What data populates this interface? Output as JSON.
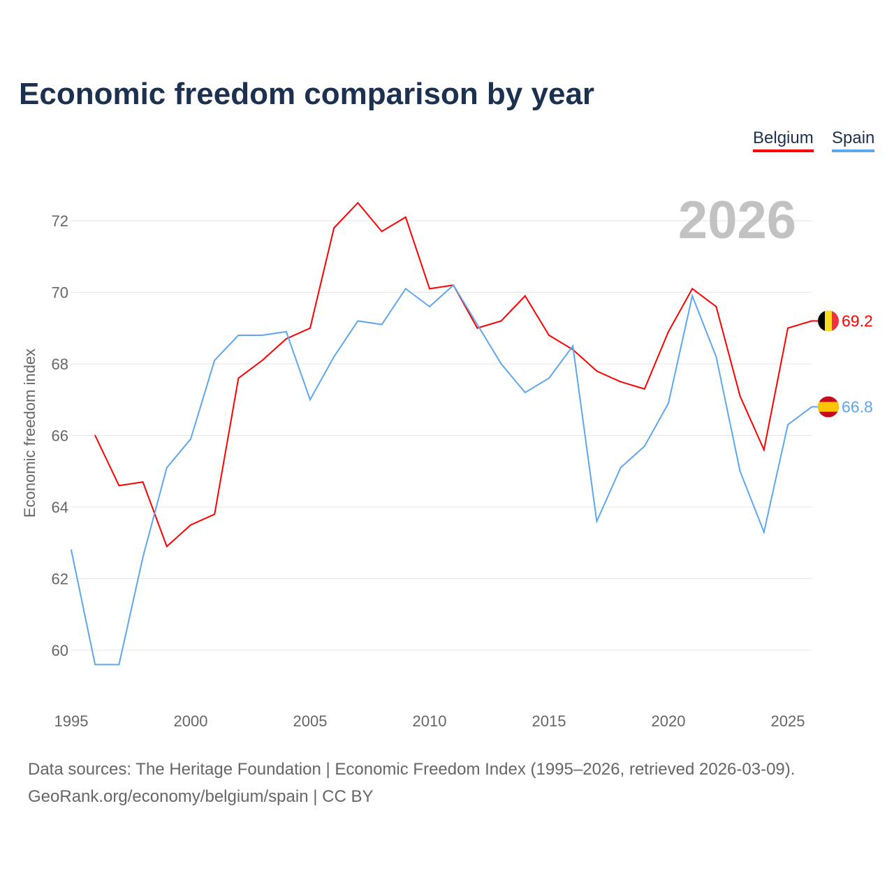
{
  "chart_data": {
    "type": "line",
    "title": "Economic freedom comparison by year",
    "ylabel": "Economic freedom index",
    "xlabel": "",
    "ylim": [
      58.8,
      73
    ],
    "xlim": [
      1995,
      2026
    ],
    "yticks": [
      60,
      62,
      64,
      66,
      68,
      70,
      72
    ],
    "xticks": [
      1995,
      2000,
      2005,
      2010,
      2015,
      2020,
      2025
    ],
    "grid": true,
    "legend_position": "top-right",
    "year_label": "2026",
    "series": [
      {
        "name": "Belgium",
        "color": "#ff0000",
        "end_label": "69.2",
        "x": [
          1996,
          1997,
          1998,
          1999,
          2000,
          2001,
          2002,
          2003,
          2004,
          2005,
          2006,
          2007,
          2008,
          2009,
          2010,
          2011,
          2012,
          2013,
          2014,
          2015,
          2016,
          2017,
          2018,
          2019,
          2020,
          2021,
          2022,
          2023,
          2024,
          2025,
          2026
        ],
        "values": [
          66.0,
          64.6,
          64.7,
          62.9,
          63.5,
          63.8,
          67.6,
          68.1,
          68.7,
          69.0,
          71.8,
          72.5,
          71.7,
          72.1,
          70.1,
          70.2,
          69.0,
          69.2,
          69.9,
          68.8,
          68.4,
          67.8,
          67.5,
          67.3,
          68.9,
          70.1,
          69.6,
          67.1,
          65.6,
          69.0,
          69.2
        ]
      },
      {
        "name": "Spain",
        "color": "#5ea6ed",
        "end_label": "66.8",
        "x": [
          1995,
          1996,
          1997,
          1998,
          1999,
          2000,
          2001,
          2002,
          2003,
          2004,
          2005,
          2006,
          2007,
          2008,
          2009,
          2010,
          2011,
          2012,
          2013,
          2014,
          2015,
          2016,
          2017,
          2018,
          2019,
          2020,
          2021,
          2022,
          2023,
          2024,
          2025,
          2026
        ],
        "values": [
          62.8,
          59.6,
          59.6,
          62.6,
          65.1,
          65.9,
          68.1,
          68.8,
          68.8,
          68.9,
          67.0,
          68.2,
          69.2,
          69.1,
          70.1,
          69.6,
          70.2,
          69.1,
          68.0,
          67.2,
          67.6,
          68.5,
          63.6,
          65.1,
          65.7,
          66.9,
          69.9,
          68.2,
          65.0,
          63.3,
          66.3,
          66.8
        ]
      }
    ]
  },
  "footer": {
    "line1": "Data sources: The Heritage Foundation | Economic Freedom Index (1995–2026, retrieved 2026-03-09).",
    "line2": "GeoRank.org/economy/belgium/spain | CC BY"
  }
}
